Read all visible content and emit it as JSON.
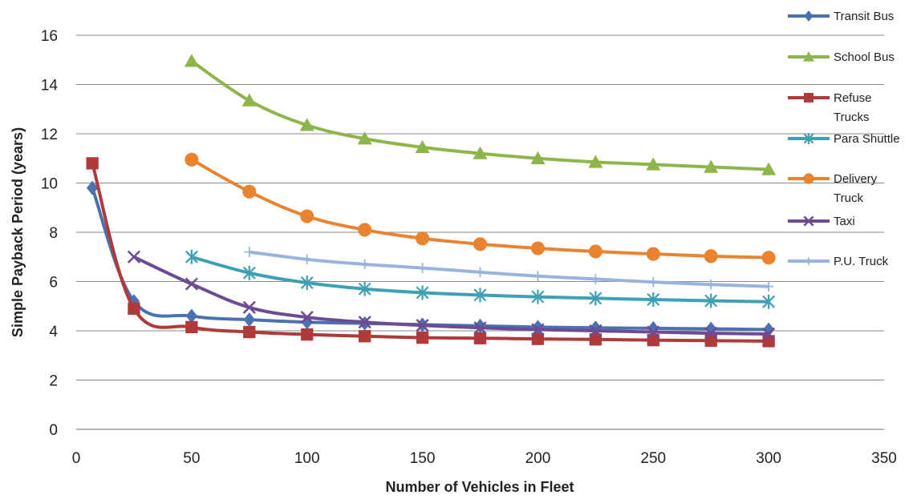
{
  "chart_data": {
    "type": "line",
    "title": "",
    "xlabel": "Number of Vehicles in Fleet",
    "ylabel": "Simple Payback Period (years)",
    "xlim": [
      0,
      350
    ],
    "ylim": [
      0,
      16
    ],
    "xticks": [
      0,
      50,
      100,
      150,
      200,
      250,
      300,
      350
    ],
    "yticks": [
      0,
      2,
      4,
      6,
      8,
      10,
      12,
      14,
      16
    ],
    "grid": "horizontal",
    "legend_position": "right",
    "series": [
      {
        "name": "Transit Bus",
        "color": "#4a72b0",
        "marker": "diamond",
        "points": [
          [
            7,
            9.8
          ],
          [
            25,
            5.2
          ],
          [
            50,
            4.6
          ],
          [
            75,
            4.45
          ],
          [
            100,
            4.35
          ],
          [
            125,
            4.3
          ],
          [
            150,
            4.25
          ],
          [
            175,
            4.2
          ],
          [
            200,
            4.15
          ],
          [
            225,
            4.12
          ],
          [
            250,
            4.1
          ],
          [
            275,
            4.08
          ],
          [
            300,
            4.05
          ]
        ]
      },
      {
        "name": "School Bus",
        "color": "#8db549",
        "marker": "triangle",
        "points": [
          [
            50,
            14.95
          ],
          [
            75,
            13.35
          ],
          [
            100,
            12.35
          ],
          [
            125,
            11.8
          ],
          [
            150,
            11.45
          ],
          [
            175,
            11.2
          ],
          [
            200,
            11.0
          ],
          [
            225,
            10.85
          ],
          [
            250,
            10.75
          ],
          [
            275,
            10.65
          ],
          [
            300,
            10.55
          ]
        ]
      },
      {
        "name": "Refuse Trucks",
        "color": "#b03a3a",
        "marker": "square",
        "points": [
          [
            7,
            10.8
          ],
          [
            25,
            4.9
          ],
          [
            50,
            4.15
          ],
          [
            75,
            3.95
          ],
          [
            100,
            3.85
          ],
          [
            125,
            3.78
          ],
          [
            150,
            3.72
          ],
          [
            175,
            3.7
          ],
          [
            200,
            3.67
          ],
          [
            225,
            3.65
          ],
          [
            250,
            3.62
          ],
          [
            275,
            3.6
          ],
          [
            300,
            3.58
          ]
        ]
      },
      {
        "name": "Para Shuttle",
        "color": "#3fa0b4",
        "marker": "asterisk",
        "points": [
          [
            50,
            7.0
          ],
          [
            75,
            6.35
          ],
          [
            100,
            5.95
          ],
          [
            125,
            5.7
          ],
          [
            150,
            5.55
          ],
          [
            175,
            5.45
          ],
          [
            200,
            5.38
          ],
          [
            225,
            5.32
          ],
          [
            250,
            5.27
          ],
          [
            275,
            5.22
          ],
          [
            300,
            5.18
          ]
        ]
      },
      {
        "name": "Delivery Truck",
        "color": "#e9832f",
        "marker": "circle",
        "points": [
          [
            50,
            10.95
          ],
          [
            75,
            9.65
          ],
          [
            100,
            8.65
          ],
          [
            125,
            8.1
          ],
          [
            150,
            7.75
          ],
          [
            175,
            7.52
          ],
          [
            200,
            7.35
          ],
          [
            225,
            7.22
          ],
          [
            250,
            7.12
          ],
          [
            275,
            7.03
          ],
          [
            300,
            6.97
          ]
        ]
      },
      {
        "name": "Taxi",
        "color": "#6d4b93",
        "marker": "x",
        "points": [
          [
            25,
            7.0
          ],
          [
            50,
            5.9
          ],
          [
            75,
            4.95
          ],
          [
            100,
            4.55
          ],
          [
            125,
            4.35
          ],
          [
            150,
            4.22
          ],
          [
            175,
            4.12
          ],
          [
            200,
            4.05
          ],
          [
            225,
            4.0
          ],
          [
            250,
            3.95
          ],
          [
            275,
            3.9
          ],
          [
            300,
            3.87
          ]
        ]
      },
      {
        "name": "P.U. Truck",
        "color": "#98b4dc",
        "marker": "plus",
        "points": [
          [
            75,
            7.2
          ],
          [
            100,
            6.9
          ],
          [
            125,
            6.7
          ],
          [
            150,
            6.55
          ],
          [
            175,
            6.38
          ],
          [
            200,
            6.22
          ],
          [
            225,
            6.1
          ],
          [
            250,
            5.98
          ],
          [
            275,
            5.88
          ],
          [
            300,
            5.8
          ]
        ]
      }
    ]
  }
}
